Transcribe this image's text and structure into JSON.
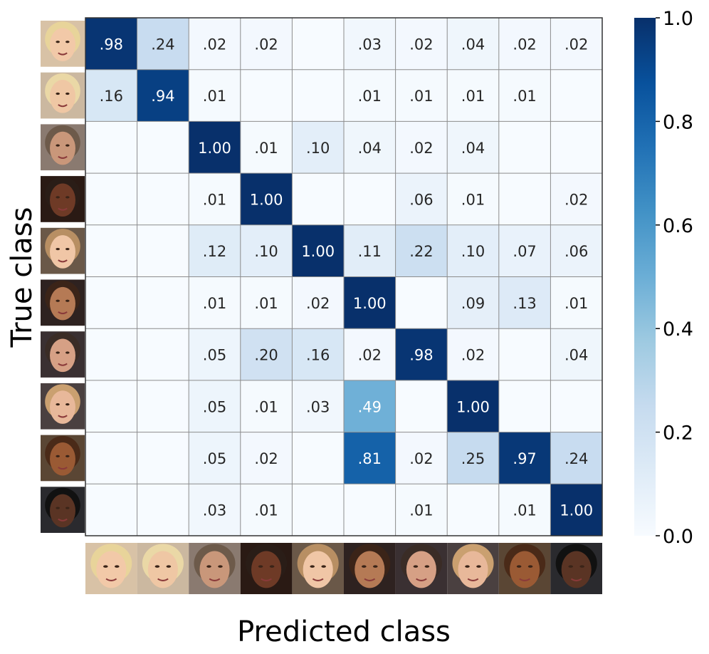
{
  "chart_data": {
    "type": "heatmap",
    "xlabel": "Predicted class",
    "ylabel": "True class",
    "classes": [
      "person-1",
      "person-2",
      "person-3",
      "person-4",
      "person-5",
      "person-6",
      "person-7",
      "person-8",
      "person-9",
      "person-10"
    ],
    "values": [
      [
        0.98,
        0.24,
        0.02,
        0.02,
        null,
        0.03,
        0.02,
        0.04,
        0.02,
        0.02
      ],
      [
        0.16,
        0.94,
        0.01,
        null,
        null,
        0.01,
        0.01,
        0.01,
        0.01,
        null
      ],
      [
        null,
        null,
        1.0,
        0.01,
        0.1,
        0.04,
        0.02,
        0.04,
        null,
        null
      ],
      [
        null,
        null,
        0.01,
        1.0,
        null,
        null,
        0.06,
        0.01,
        null,
        0.02
      ],
      [
        null,
        null,
        0.12,
        0.1,
        1.0,
        0.11,
        0.22,
        0.1,
        0.07,
        0.06
      ],
      [
        null,
        null,
        0.01,
        0.01,
        0.02,
        1.0,
        null,
        0.09,
        0.13,
        0.01
      ],
      [
        null,
        null,
        0.05,
        0.2,
        0.16,
        0.02,
        0.98,
        0.02,
        null,
        0.04
      ],
      [
        null,
        null,
        0.05,
        0.01,
        0.03,
        0.49,
        null,
        1.0,
        null,
        null
      ],
      [
        null,
        null,
        0.05,
        0.02,
        null,
        0.81,
        0.02,
        0.25,
        0.97,
        0.24
      ],
      [
        null,
        null,
        0.03,
        0.01,
        null,
        null,
        0.01,
        null,
        0.01,
        1.0
      ]
    ],
    "cell_text": [
      [
        ".98",
        ".24",
        ".02",
        ".02",
        "",
        ".03",
        ".02",
        ".04",
        ".02",
        ".02"
      ],
      [
        ".16",
        ".94",
        ".01",
        "",
        "",
        ".01",
        ".01",
        ".01",
        ".01",
        ""
      ],
      [
        "",
        "",
        "1.00",
        ".01",
        ".10",
        ".04",
        ".02",
        ".04",
        "",
        ""
      ],
      [
        "",
        "",
        ".01",
        "1.00",
        "",
        "",
        ".06",
        ".01",
        "",
        ".02"
      ],
      [
        "",
        "",
        ".12",
        ".10",
        "1.00",
        ".11",
        ".22",
        ".10",
        ".07",
        ".06"
      ],
      [
        "",
        "",
        ".01",
        ".01",
        ".02",
        "1.00",
        "",
        ".09",
        ".13",
        ".01"
      ],
      [
        "",
        "",
        ".05",
        ".20",
        ".16",
        ".02",
        ".98",
        ".02",
        "",
        ".04"
      ],
      [
        "",
        "",
        ".05",
        ".01",
        ".03",
        ".49",
        "",
        "1.00",
        "",
        ""
      ],
      [
        "",
        "",
        ".05",
        ".02",
        "",
        ".81",
        ".02",
        ".25",
        ".97",
        ".24"
      ],
      [
        "",
        "",
        ".03",
        ".01",
        "",
        "",
        ".01",
        "",
        ".01",
        "1.00"
      ]
    ],
    "colorbar": {
      "range": [
        0.0,
        1.0
      ],
      "ticks": [
        0.0,
        0.2,
        0.4,
        0.6,
        0.8,
        1.0
      ],
      "tick_labels": [
        "0.0",
        "0.2",
        "0.4",
        "0.6",
        "0.8",
        "1.0"
      ],
      "colormap": "Blues"
    },
    "tick_type": "face-thumbnails",
    "colors": {
      "grid": "#8c8c8c",
      "frame": "#333333",
      "text_dark": "#262626",
      "text_light": "#ffffff",
      "face_skin": [
        "#f2c9a8",
        "#efc7a4",
        "#c9977a",
        "#6e3a26",
        "#f0c6a6",
        "#b57a55",
        "#d6a085",
        "#e8b89a",
        "#9a5a34",
        "#5a3424"
      ],
      "face_hair": [
        "#e8d49a",
        "#ead8a6",
        "#6d5a4a",
        "#2a1d17",
        "#b88f63",
        "#3b2418",
        "#3a2c26",
        "#caa070",
        "#4a2a18",
        "#111111"
      ],
      "face_bg": [
        "#d8c2a6",
        "#cbb8a0",
        "#8a7a70",
        "#2a1a14",
        "#6a5848",
        "#2e2220",
        "#3a3032",
        "#4a4040",
        "#5a4634",
        "#2a2a2e"
      ]
    }
  }
}
